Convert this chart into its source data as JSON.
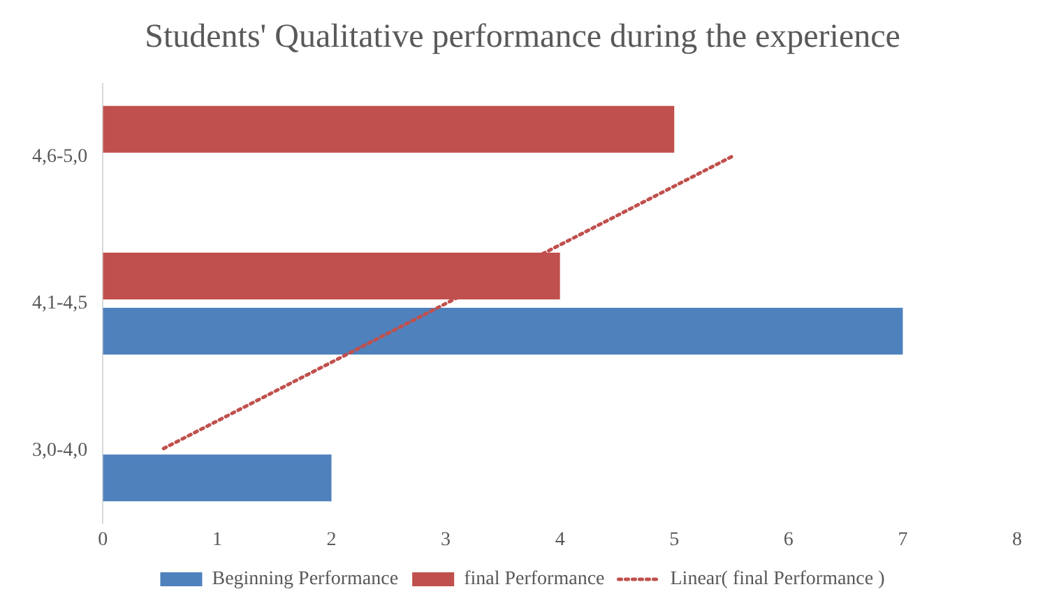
{
  "chart_data": {
    "type": "bar",
    "orientation": "horizontal",
    "title": "Students' Qualitative performance during the experience",
    "categories": [
      "4,6-5,0",
      "4,1-4,5",
      "3,0-4,0"
    ],
    "series": [
      {
        "name": "Beginning Performance",
        "color": "#4f81bd",
        "values": [
          0,
          7,
          2
        ]
      },
      {
        "name": "final Performance",
        "color": "#c0504d",
        "values": [
          5,
          4,
          0
        ]
      },
      {
        "name": "Linear( final Performance )",
        "type": "line",
        "line_style": "dotted",
        "color": "#c0504d",
        "values": [
          5.5,
          3,
          0.5
        ]
      }
    ],
    "xlim": [
      0,
      8
    ],
    "xticks": [
      0,
      1,
      2,
      3,
      4,
      5,
      6,
      7,
      8
    ],
    "grid": false,
    "legend": "bottom"
  }
}
